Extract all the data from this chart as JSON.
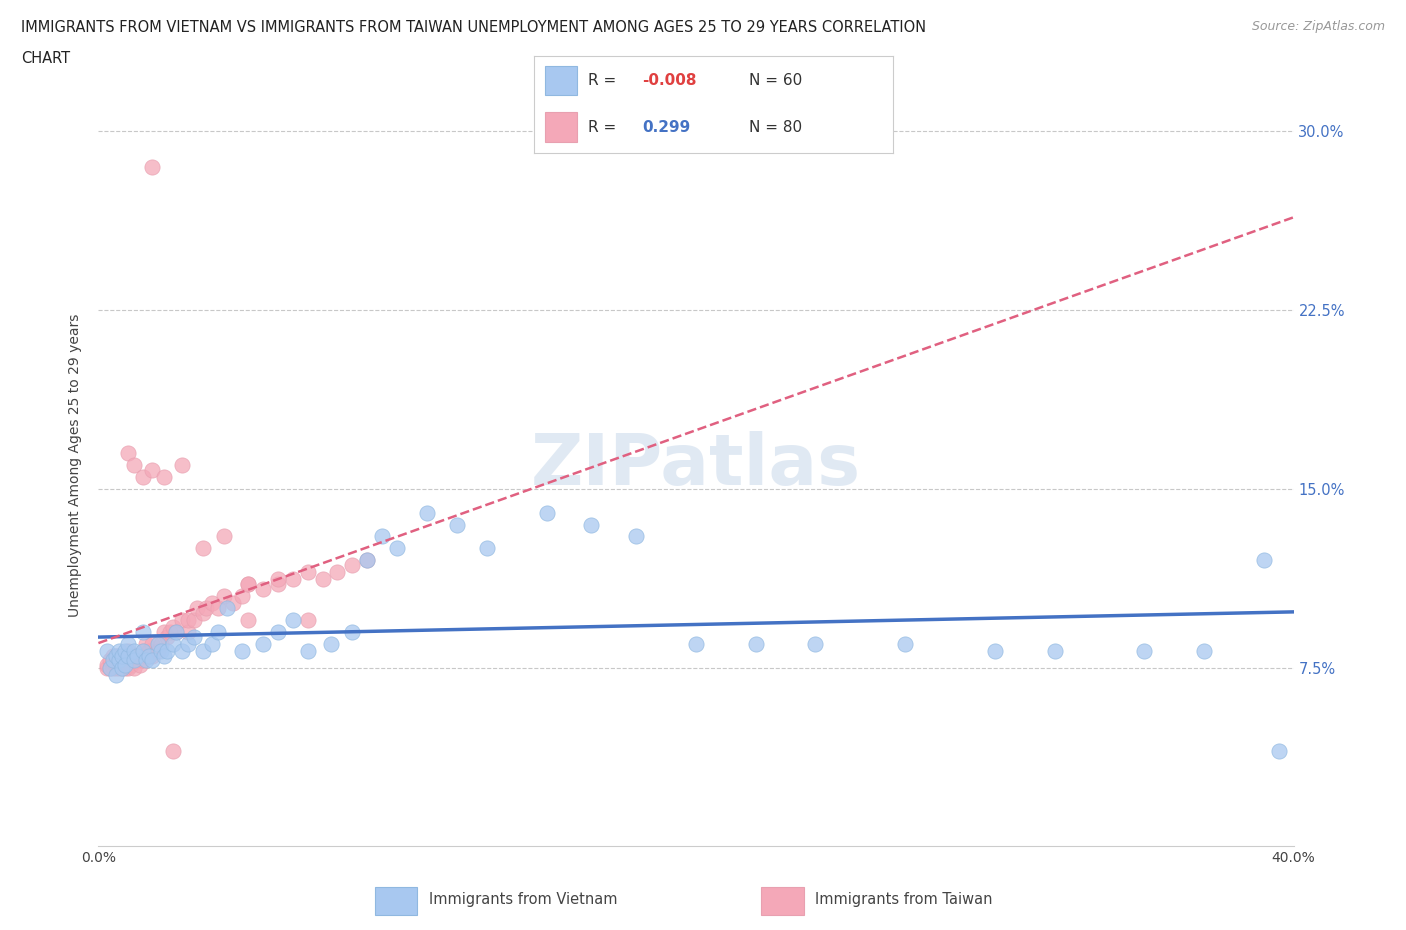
{
  "title_line1": "IMMIGRANTS FROM VIETNAM VS IMMIGRANTS FROM TAIWAN UNEMPLOYMENT AMONG AGES 25 TO 29 YEARS CORRELATION",
  "title_line2": "CHART",
  "source_text": "Source: ZipAtlas.com",
  "ylabel": "Unemployment Among Ages 25 to 29 years",
  "xlim": [
    0.0,
    0.4
  ],
  "ylim": [
    0.0,
    0.32
  ],
  "x_ticks": [
    0.0,
    0.1,
    0.2,
    0.3,
    0.4
  ],
  "x_tick_labels": [
    "0.0%",
    "",
    "",
    "",
    "40.0%"
  ],
  "y_ticks": [
    0.075,
    0.15,
    0.225,
    0.3
  ],
  "y_tick_labels": [
    "7.5%",
    "15.0%",
    "22.5%",
    "30.0%"
  ],
  "watermark": "ZIPatlas",
  "color_vietnam": "#a8c8f0",
  "color_taiwan": "#f4a8b8",
  "color_trendline_vietnam": "#4472c4",
  "color_trendline_taiwan": "#e06080",
  "grid_color": "#c8c8c8",
  "vietnam_x": [
    0.003,
    0.004,
    0.005,
    0.006,
    0.006,
    0.007,
    0.007,
    0.008,
    0.008,
    0.009,
    0.009,
    0.01,
    0.01,
    0.012,
    0.012,
    0.013,
    0.015,
    0.015,
    0.016,
    0.017,
    0.018,
    0.02,
    0.021,
    0.022,
    0.023,
    0.025,
    0.026,
    0.028,
    0.03,
    0.032,
    0.035,
    0.038,
    0.04,
    0.043,
    0.048,
    0.055,
    0.06,
    0.065,
    0.07,
    0.078,
    0.085,
    0.09,
    0.095,
    0.1,
    0.11,
    0.12,
    0.13,
    0.15,
    0.165,
    0.18,
    0.2,
    0.22,
    0.24,
    0.27,
    0.3,
    0.32,
    0.35,
    0.37,
    0.39,
    0.395
  ],
  "vietnam_y": [
    0.082,
    0.075,
    0.078,
    0.08,
    0.072,
    0.078,
    0.082,
    0.075,
    0.08,
    0.082,
    0.076,
    0.08,
    0.085,
    0.082,
    0.078,
    0.08,
    0.082,
    0.09,
    0.078,
    0.08,
    0.078,
    0.085,
    0.082,
    0.08,
    0.082,
    0.085,
    0.09,
    0.082,
    0.085,
    0.088,
    0.082,
    0.085,
    0.09,
    0.1,
    0.082,
    0.085,
    0.09,
    0.095,
    0.082,
    0.085,
    0.09,
    0.12,
    0.13,
    0.125,
    0.14,
    0.135,
    0.125,
    0.14,
    0.135,
    0.13,
    0.085,
    0.085,
    0.085,
    0.085,
    0.082,
    0.082,
    0.082,
    0.082,
    0.12,
    0.04
  ],
  "taiwan_x": [
    0.003,
    0.003,
    0.004,
    0.004,
    0.005,
    0.005,
    0.005,
    0.006,
    0.006,
    0.006,
    0.006,
    0.007,
    0.007,
    0.007,
    0.007,
    0.008,
    0.008,
    0.008,
    0.009,
    0.009,
    0.009,
    0.01,
    0.01,
    0.01,
    0.01,
    0.011,
    0.011,
    0.012,
    0.012,
    0.013,
    0.014,
    0.015,
    0.015,
    0.016,
    0.016,
    0.017,
    0.018,
    0.018,
    0.02,
    0.021,
    0.022,
    0.023,
    0.024,
    0.025,
    0.026,
    0.028,
    0.03,
    0.03,
    0.032,
    0.033,
    0.035,
    0.036,
    0.038,
    0.04,
    0.042,
    0.045,
    0.048,
    0.05,
    0.055,
    0.06,
    0.065,
    0.07,
    0.075,
    0.08,
    0.085,
    0.09,
    0.01,
    0.012,
    0.015,
    0.018,
    0.022,
    0.028,
    0.035,
    0.042,
    0.05,
    0.06,
    0.07,
    0.05,
    0.018,
    0.025
  ],
  "taiwan_y": [
    0.075,
    0.076,
    0.075,
    0.078,
    0.075,
    0.078,
    0.08,
    0.075,
    0.076,
    0.078,
    0.08,
    0.075,
    0.076,
    0.078,
    0.08,
    0.075,
    0.076,
    0.08,
    0.075,
    0.076,
    0.08,
    0.075,
    0.076,
    0.078,
    0.082,
    0.076,
    0.08,
    0.075,
    0.08,
    0.078,
    0.076,
    0.078,
    0.082,
    0.08,
    0.085,
    0.082,
    0.08,
    0.085,
    0.082,
    0.085,
    0.09,
    0.088,
    0.09,
    0.092,
    0.09,
    0.095,
    0.09,
    0.095,
    0.095,
    0.1,
    0.098,
    0.1,
    0.102,
    0.1,
    0.105,
    0.102,
    0.105,
    0.11,
    0.108,
    0.11,
    0.112,
    0.115,
    0.112,
    0.115,
    0.118,
    0.12,
    0.165,
    0.16,
    0.155,
    0.158,
    0.155,
    0.16,
    0.125,
    0.13,
    0.11,
    0.112,
    0.095,
    0.095,
    0.285,
    0.04
  ]
}
